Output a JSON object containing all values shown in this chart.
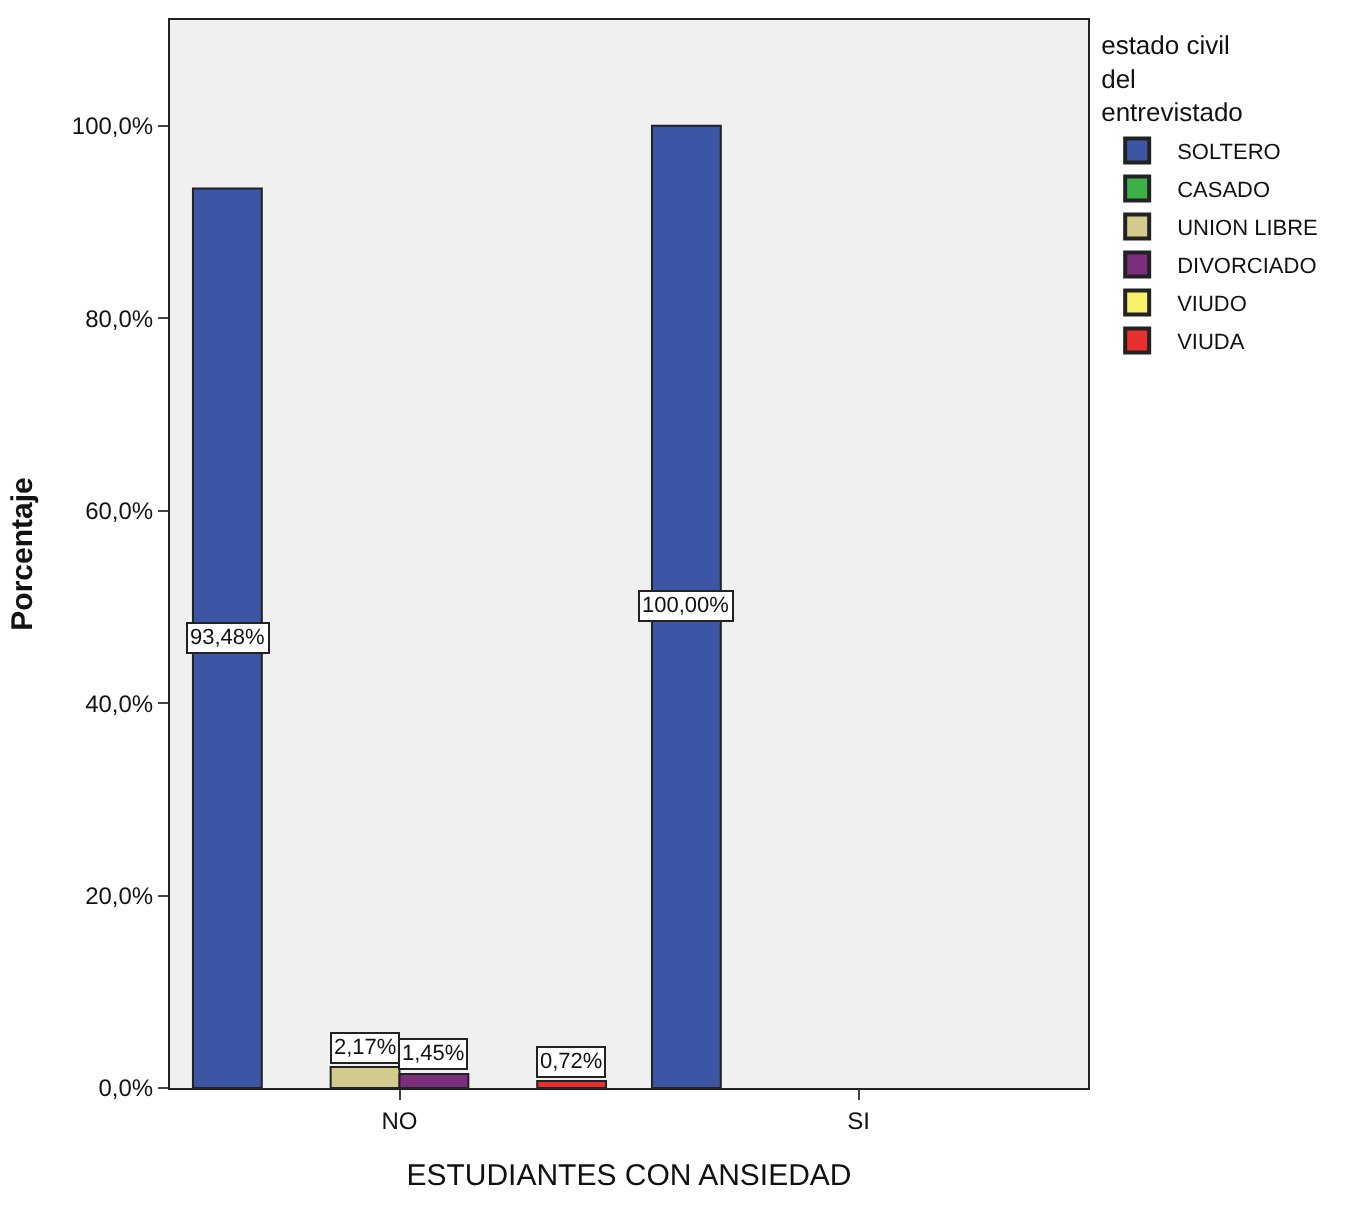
{
  "chart_data": {
    "type": "bar",
    "xlabel": "ESTUDIANTES CON ANSIEDAD",
    "ylabel": "Porcentaje",
    "legend_title": "estado civil del entrevistado",
    "legend": "top right",
    "grid": false,
    "categories": [
      "NO",
      "SI"
    ],
    "series": [
      {
        "name": "SOLTERO",
        "color": "#3c55a5",
        "values": [
          93.48,
          100
        ],
        "value_labels": [
          "93,48%",
          "100,00%"
        ]
      },
      {
        "name": "CASADO",
        "color": "#3db048",
        "values": [
          null,
          null
        ],
        "value_labels": [
          null,
          null
        ]
      },
      {
        "name": "UNION LIBRE",
        "color": "#d3cb8e",
        "values": [
          2.17,
          null
        ],
        "value_labels": [
          "2,17%",
          null
        ]
      },
      {
        "name": "DIVORCIADO",
        "color": "#7b2d7e",
        "values": [
          1.45,
          null
        ],
        "value_labels": [
          "1,45%",
          null
        ]
      },
      {
        "name": "VIUDO",
        "color": "#f7f06a",
        "values": [
          null,
          null
        ],
        "value_labels": [
          null,
          null
        ]
      },
      {
        "name": "VIUDA",
        "color": "#e8312f",
        "values": [
          0.72,
          null
        ],
        "value_labels": [
          "0,72%",
          null
        ]
      }
    ],
    "ylim": [
      0,
      111
    ],
    "yticks": [
      {
        "value": 0,
        "label": "0,0%"
      },
      {
        "value": 20,
        "label": "20,0%"
      },
      {
        "value": 40,
        "label": "40,0%"
      },
      {
        "value": 60,
        "label": "60,0%"
      },
      {
        "value": 80,
        "label": "80,0%"
      },
      {
        "value": 100,
        "label": "100,0%"
      }
    ]
  }
}
